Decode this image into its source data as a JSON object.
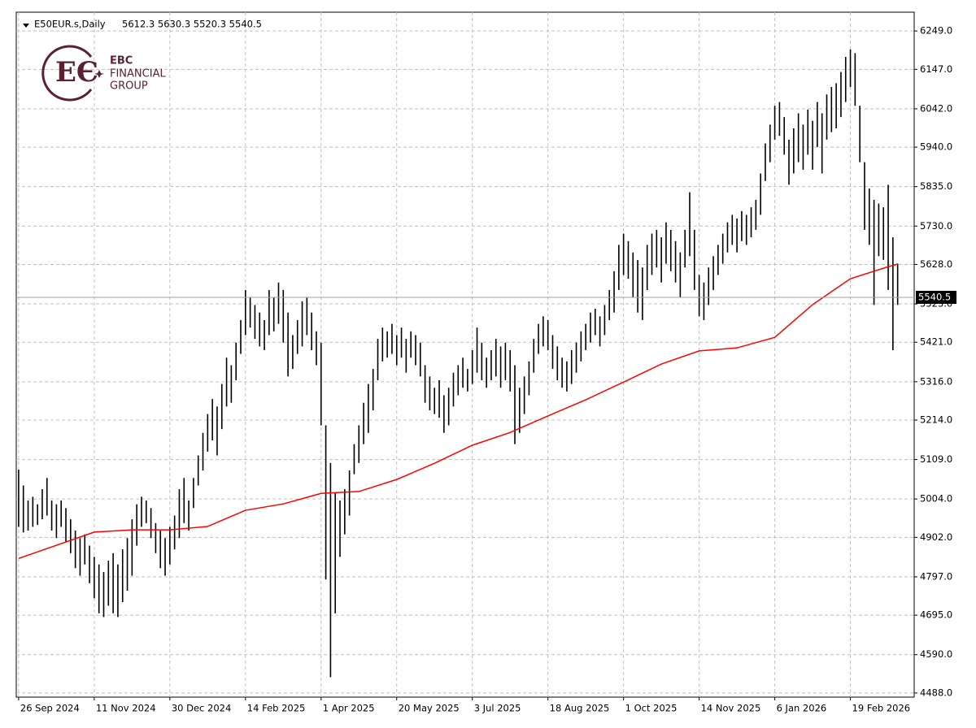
{
  "chart_data": {
    "type": "ohlc",
    "title": "E50EUR.s,Daily",
    "subtitle": "5612.3 5630.3 5520.3 5540.5",
    "logo": {
      "line1": "EBC",
      "line2": "FINANCIAL",
      "line3": "GROUP"
    },
    "bar_color": "#000000",
    "grid": true,
    "grid_color": "#c0c0c0",
    "xlim": [
      -0.5,
      189.5
    ],
    "ylim": [
      4477,
      6299
    ],
    "xticks": [
      {
        "value": 0,
        "label": "26 Sep 2024"
      },
      {
        "value": 16,
        "label": "11 Nov 2024"
      },
      {
        "value": 32,
        "label": "30 Dec 2024"
      },
      {
        "value": 48,
        "label": "14 Feb 2025"
      },
      {
        "value": 64,
        "label": "1 Apr 2025"
      },
      {
        "value": 80,
        "label": "20 May 2025"
      },
      {
        "value": 96,
        "label": "3 Jul 2025"
      },
      {
        "value": 112,
        "label": "18 Aug 2025"
      },
      {
        "value": 128,
        "label": "1 Oct 2025"
      },
      {
        "value": 144,
        "label": "14 Nov 2025"
      },
      {
        "value": 160,
        "label": "6 Jan 2026"
      },
      {
        "value": 176,
        "label": "19 Feb 2026"
      }
    ],
    "yticks": [
      {
        "value": 6249,
        "label": "6249.0"
      },
      {
        "value": 6147,
        "label": "6147.0"
      },
      {
        "value": 6042,
        "label": "6042.0"
      },
      {
        "value": 5940,
        "label": "5940.0"
      },
      {
        "value": 5835,
        "label": "5835.0"
      },
      {
        "value": 5730,
        "label": "5730.0"
      },
      {
        "value": 5628,
        "label": "5628.0"
      },
      {
        "value": 5523,
        "label": "5523.0"
      },
      {
        "value": 5421,
        "label": "5421.0"
      },
      {
        "value": 5316,
        "label": "5316.0"
      },
      {
        "value": 5214,
        "label": "5214.0"
      },
      {
        "value": 5109,
        "label": "5109.0"
      },
      {
        "value": 5004,
        "label": "5004.0"
      },
      {
        "value": 4902,
        "label": "4902.0"
      },
      {
        "value": 4797,
        "label": "4797.0"
      },
      {
        "value": 4695,
        "label": "4695.0"
      },
      {
        "value": 4590,
        "label": "4590.0"
      },
      {
        "value": 4488,
        "label": "4488.0"
      }
    ],
    "last_price": 5540.5,
    "high": [
      5082,
      5040,
      5000,
      5010,
      4990,
      5030,
      5060,
      5000,
      4990,
      5000,
      4980,
      4950,
      4920,
      4900,
      4910,
      4880,
      4850,
      4830,
      4810,
      4840,
      4860,
      4830,
      4870,
      4900,
      4950,
      4990,
      5010,
      5000,
      4980,
      4940,
      4920,
      4900,
      4930,
      4960,
      5030,
      5060,
      5000,
      5060,
      5120,
      5180,
      5230,
      5270,
      5250,
      5310,
      5380,
      5360,
      5420,
      5480,
      5560,
      5540,
      5520,
      5500,
      5480,
      5560,
      5540,
      5580,
      5560,
      5500,
      5440,
      5480,
      5530,
      5540,
      5500,
      5450,
      5420,
      5200,
      5100,
      5020,
      5000,
      5030,
      5080,
      5150,
      5200,
      5260,
      5310,
      5350,
      5430,
      5460,
      5450,
      5470,
      5440,
      5460,
      5430,
      5450,
      5440,
      5420,
      5360,
      5330,
      5300,
      5320,
      5280,
      5300,
      5340,
      5360,
      5380,
      5350,
      5400,
      5460,
      5420,
      5380,
      5400,
      5430,
      5410,
      5420,
      5400,
      5360,
      5300,
      5330,
      5370,
      5430,
      5470,
      5490,
      5480,
      5440,
      5410,
      5380,
      5370,
      5400,
      5420,
      5450,
      5470,
      5500,
      5510,
      5490,
      5520,
      5560,
      5610,
      5680,
      5710,
      5690,
      5660,
      5640,
      5620,
      5680,
      5710,
      5720,
      5700,
      5740,
      5720,
      5690,
      5660,
      5720,
      5820,
      5720,
      5600,
      5580,
      5620,
      5650,
      5680,
      5710,
      5740,
      5760,
      5750,
      5770,
      5760,
      5780,
      5800,
      5870,
      5950,
      6000,
      6050,
      6060,
      6020,
      5960,
      5990,
      6030,
      6000,
      6040,
      6010,
      6060,
      6030,
      6080,
      6100,
      6110,
      6140,
      6180,
      6200,
      6190,
      6050,
      5900,
      5830,
      5800,
      5790,
      5780,
      5840,
      5700,
      5630.3
    ],
    "low": [
      4930,
      4915,
      4920,
      4930,
      4935,
      4950,
      4960,
      4920,
      4900,
      4930,
      4890,
      4860,
      4820,
      4800,
      4830,
      4780,
      4740,
      4700,
      4690,
      4720,
      4700,
      4690,
      4730,
      4760,
      4800,
      4880,
      4930,
      4940,
      4900,
      4860,
      4820,
      4800,
      4830,
      4870,
      4900,
      4940,
      4920,
      4980,
      5040,
      5080,
      5130,
      5160,
      5120,
      5190,
      5250,
      5260,
      5320,
      5390,
      5440,
      5460,
      5430,
      5410,
      5400,
      5440,
      5450,
      5470,
      5420,
      5330,
      5350,
      5390,
      5410,
      5440,
      5400,
      5360,
      5200,
      4790,
      4530,
      4700,
      4850,
      4910,
      4960,
      5070,
      5100,
      5150,
      5180,
      5240,
      5320,
      5370,
      5380,
      5390,
      5360,
      5380,
      5340,
      5380,
      5360,
      5330,
      5260,
      5240,
      5230,
      5220,
      5180,
      5200,
      5250,
      5280,
      5300,
      5290,
      5310,
      5340,
      5320,
      5300,
      5320,
      5330,
      5300,
      5320,
      5290,
      5150,
      5180,
      5230,
      5280,
      5340,
      5390,
      5410,
      5400,
      5350,
      5320,
      5300,
      5290,
      5310,
      5340,
      5370,
      5400,
      5420,
      5440,
      5410,
      5440,
      5480,
      5500,
      5560,
      5600,
      5590,
      5540,
      5500,
      5480,
      5560,
      5600,
      5620,
      5580,
      5630,
      5610,
      5580,
      5540,
      5620,
      5650,
      5560,
      5490,
      5480,
      5520,
      5560,
      5600,
      5630,
      5660,
      5680,
      5660,
      5690,
      5680,
      5700,
      5720,
      5760,
      5850,
      5900,
      5960,
      5970,
      5920,
      5840,
      5870,
      5900,
      5880,
      5920,
      5880,
      5940,
      5870,
      5960,
      5980,
      5990,
      6020,
      6060,
      6100,
      6050,
      5900,
      5720,
      5680,
      5520,
      5650,
      5640,
      5560,
      5400,
      5520.3
    ],
    "series": [
      {
        "name": "MA",
        "color": "#ff0000",
        "x": [
          0,
          16,
          24,
          32,
          40,
          48,
          56,
          64,
          72,
          80,
          88,
          96,
          104,
          112,
          120,
          128,
          136,
          144,
          152,
          160,
          168,
          176,
          184,
          186
        ],
        "values": [
          4846,
          4916,
          4922,
          4922,
          4931,
          4974,
          4991,
          5019,
          5024,
          5056,
          5099,
          5147,
          5181,
          5225,
          5268,
          5315,
          5363,
          5398,
          5406,
          5434,
          5521,
          5590,
          5622,
          5629
        ]
      }
    ]
  }
}
